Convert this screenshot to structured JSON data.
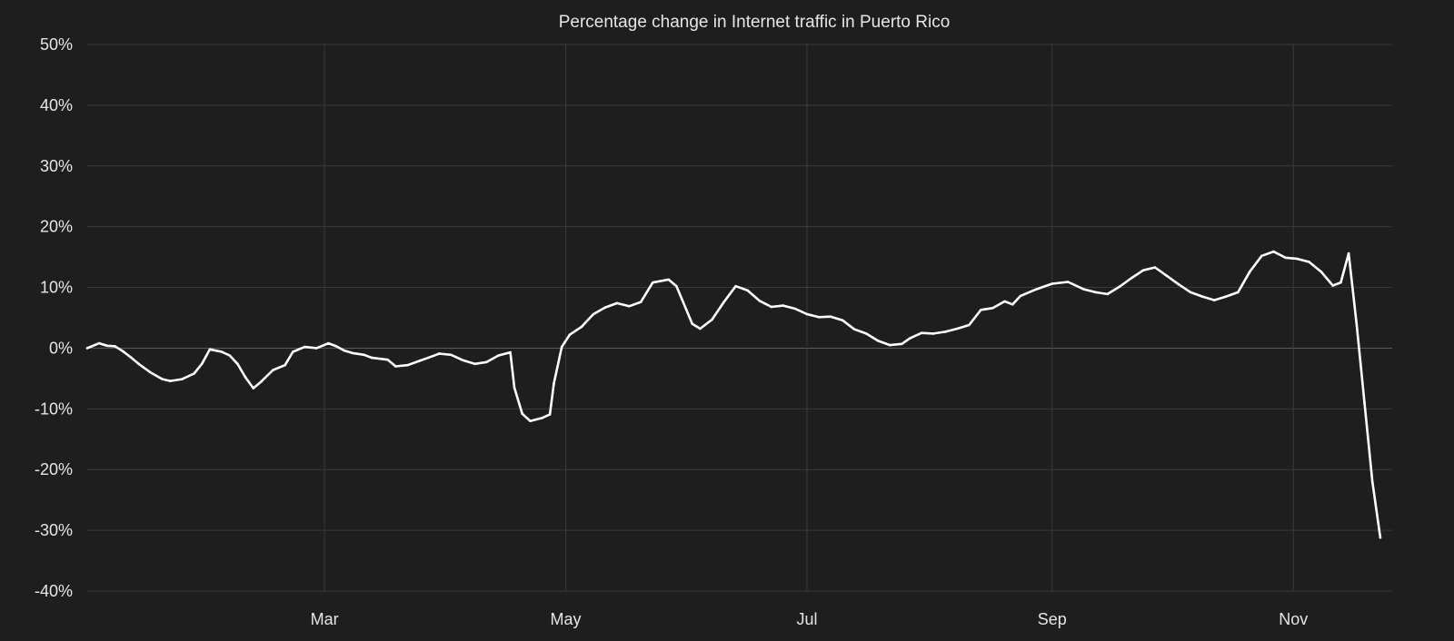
{
  "chart_data": {
    "type": "line",
    "title": "Percentage change in Internet traffic in Puerto Rico",
    "xlabel": "",
    "ylabel": "",
    "ylim": [
      -40,
      50
    ],
    "y_ticks": [
      50,
      40,
      30,
      20,
      10,
      0,
      -10,
      -20,
      -30,
      -40
    ],
    "y_tick_labels": [
      "50%",
      "40%",
      "30%",
      "20%",
      "10%",
      "0%",
      "-10%",
      "-20%",
      "-30%",
      "-40%"
    ],
    "x_domain": [
      "2024-01-01",
      "2024-11-26"
    ],
    "x_ticks": [
      "2024-03-01",
      "2024-05-01",
      "2024-07-01",
      "2024-09-01",
      "2024-11-01"
    ],
    "x_tick_labels": [
      "Mar",
      "May",
      "Jul",
      "Sep",
      "Nov"
    ],
    "grid": true,
    "line_color": "#ffffff",
    "background": "#1e1e1e",
    "series": [
      {
        "points": [
          [
            "2024-01-01",
            0
          ],
          [
            "2024-01-04",
            0.8
          ],
          [
            "2024-01-06",
            0.4
          ],
          [
            "2024-01-08",
            0.3
          ],
          [
            "2024-01-10",
            -0.5
          ],
          [
            "2024-01-12",
            -1.5
          ],
          [
            "2024-01-14",
            -2.6
          ],
          [
            "2024-01-17",
            -4
          ],
          [
            "2024-01-20",
            -5.1
          ],
          [
            "2024-01-22",
            -5.4
          ],
          [
            "2024-01-25",
            -5.1
          ],
          [
            "2024-01-28",
            -4.2
          ],
          [
            "2024-01-30",
            -2.6
          ],
          [
            "2024-02-01",
            -0.2
          ],
          [
            "2024-02-04",
            -0.6
          ],
          [
            "2024-02-06",
            -1.2
          ],
          [
            "2024-02-08",
            -2.6
          ],
          [
            "2024-02-10",
            -4.8
          ],
          [
            "2024-02-12",
            -6.6
          ],
          [
            "2024-02-14",
            -5.5
          ],
          [
            "2024-02-17",
            -3.6
          ],
          [
            "2024-02-20",
            -2.8
          ],
          [
            "2024-02-22",
            -0.6
          ],
          [
            "2024-02-25",
            0.2
          ],
          [
            "2024-02-28",
            0
          ],
          [
            "2024-03-02",
            0.8
          ],
          [
            "2024-03-04",
            0.3
          ],
          [
            "2024-03-06",
            -0.4
          ],
          [
            "2024-03-08",
            -0.8
          ],
          [
            "2024-03-11",
            -1.1
          ],
          [
            "2024-03-13",
            -1.6
          ],
          [
            "2024-03-17",
            -1.9
          ],
          [
            "2024-03-19",
            -3
          ],
          [
            "2024-03-22",
            -2.8
          ],
          [
            "2024-03-25",
            -2.1
          ],
          [
            "2024-03-28",
            -1.4
          ],
          [
            "2024-03-30",
            -0.9
          ],
          [
            "2024-04-02",
            -1.1
          ],
          [
            "2024-04-05",
            -2
          ],
          [
            "2024-04-08",
            -2.6
          ],
          [
            "2024-04-11",
            -2.3
          ],
          [
            "2024-04-14",
            -1.2
          ],
          [
            "2024-04-17",
            -0.7
          ],
          [
            "2024-04-18",
            -6.5
          ],
          [
            "2024-04-20",
            -10.8
          ],
          [
            "2024-04-22",
            -12
          ],
          [
            "2024-04-25",
            -11.5
          ],
          [
            "2024-04-27",
            -10.9
          ],
          [
            "2024-04-28",
            -5.8
          ],
          [
            "2024-04-30",
            0.2
          ],
          [
            "2024-05-02",
            2.2
          ],
          [
            "2024-05-05",
            3.5
          ],
          [
            "2024-05-08",
            5.6
          ],
          [
            "2024-05-11",
            6.7
          ],
          [
            "2024-05-14",
            7.4
          ],
          [
            "2024-05-17",
            6.9
          ],
          [
            "2024-05-20",
            7.6
          ],
          [
            "2024-05-23",
            10.8
          ],
          [
            "2024-05-27",
            11.3
          ],
          [
            "2024-05-29",
            10.2
          ],
          [
            "2024-06-02",
            4
          ],
          [
            "2024-06-04",
            3.2
          ],
          [
            "2024-06-07",
            4.7
          ],
          [
            "2024-06-10",
            7.6
          ],
          [
            "2024-06-13",
            10.2
          ],
          [
            "2024-06-16",
            9.5
          ],
          [
            "2024-06-19",
            7.8
          ],
          [
            "2024-06-22",
            6.8
          ],
          [
            "2024-06-25",
            7
          ],
          [
            "2024-06-28",
            6.5
          ],
          [
            "2024-07-01",
            5.6
          ],
          [
            "2024-07-04",
            5.1
          ],
          [
            "2024-07-07",
            5.2
          ],
          [
            "2024-07-10",
            4.6
          ],
          [
            "2024-07-13",
            3.1
          ],
          [
            "2024-07-16",
            2.4
          ],
          [
            "2024-07-19",
            1.2
          ],
          [
            "2024-07-22",
            0.5
          ],
          [
            "2024-07-25",
            0.7
          ],
          [
            "2024-07-27",
            1.6
          ],
          [
            "2024-07-30",
            2.5
          ],
          [
            "2024-08-02",
            2.4
          ],
          [
            "2024-08-05",
            2.7
          ],
          [
            "2024-08-08",
            3.2
          ],
          [
            "2024-08-11",
            3.8
          ],
          [
            "2024-08-14",
            6.3
          ],
          [
            "2024-08-17",
            6.6
          ],
          [
            "2024-08-20",
            7.7
          ],
          [
            "2024-08-22",
            7.2
          ],
          [
            "2024-08-24",
            8.6
          ],
          [
            "2024-08-28",
            9.7
          ],
          [
            "2024-09-01",
            10.6
          ],
          [
            "2024-09-05",
            10.9
          ],
          [
            "2024-09-09",
            9.7
          ],
          [
            "2024-09-12",
            9.2
          ],
          [
            "2024-09-15",
            8.9
          ],
          [
            "2024-09-18",
            10.1
          ],
          [
            "2024-09-21",
            11.5
          ],
          [
            "2024-09-24",
            12.8
          ],
          [
            "2024-09-27",
            13.3
          ],
          [
            "2024-09-30",
            11.9
          ],
          [
            "2024-10-03",
            10.5
          ],
          [
            "2024-10-06",
            9.2
          ],
          [
            "2024-10-09",
            8.5
          ],
          [
            "2024-10-12",
            7.9
          ],
          [
            "2024-10-15",
            8.5
          ],
          [
            "2024-10-18",
            9.2
          ],
          [
            "2024-10-21",
            12.6
          ],
          [
            "2024-10-24",
            15.2
          ],
          [
            "2024-10-27",
            15.9
          ],
          [
            "2024-10-30",
            14.9
          ],
          [
            "2024-11-02",
            14.7
          ],
          [
            "2024-11-05",
            14.2
          ],
          [
            "2024-11-08",
            12.6
          ],
          [
            "2024-11-11",
            10.3
          ],
          [
            "2024-11-13",
            10.8
          ],
          [
            "2024-11-15",
            15.6
          ],
          [
            "2024-11-17",
            4
          ],
          [
            "2024-11-19",
            -9
          ],
          [
            "2024-11-21",
            -22
          ],
          [
            "2024-11-23",
            -31.2
          ]
        ]
      }
    ]
  }
}
